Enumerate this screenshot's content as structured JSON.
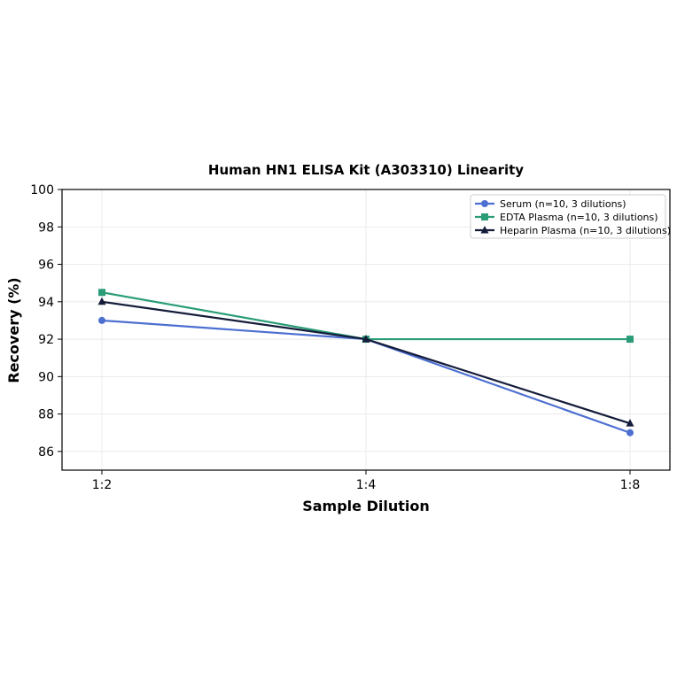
{
  "chart_data": {
    "type": "line",
    "title": "Human HN1 ELISA Kit (A303310) Linearity",
    "xlabel": "Sample Dilution",
    "ylabel": "Recovery (%)",
    "categories": [
      "1:2",
      "1:4",
      "1:8"
    ],
    "ylim": [
      85,
      100
    ],
    "yticks": [
      86,
      88,
      90,
      92,
      94,
      96,
      98,
      100
    ],
    "grid": true,
    "legend_position": "top-right",
    "series": [
      {
        "name": "Serum (n=10, 3 dilutions)",
        "values": [
          93,
          92,
          87
        ],
        "color": "#4C6FD1",
        "marker": "circle"
      },
      {
        "name": "EDTA Plasma (n=10, 3 dilutions)",
        "values": [
          94.5,
          92,
          92
        ],
        "color": "#2A9D78",
        "marker": "square"
      },
      {
        "name": "Heparin Plasma (n=10, 3 dilutions)",
        "values": [
          94,
          92,
          87.5
        ],
        "color": "#141C3A",
        "marker": "triangle"
      }
    ]
  }
}
